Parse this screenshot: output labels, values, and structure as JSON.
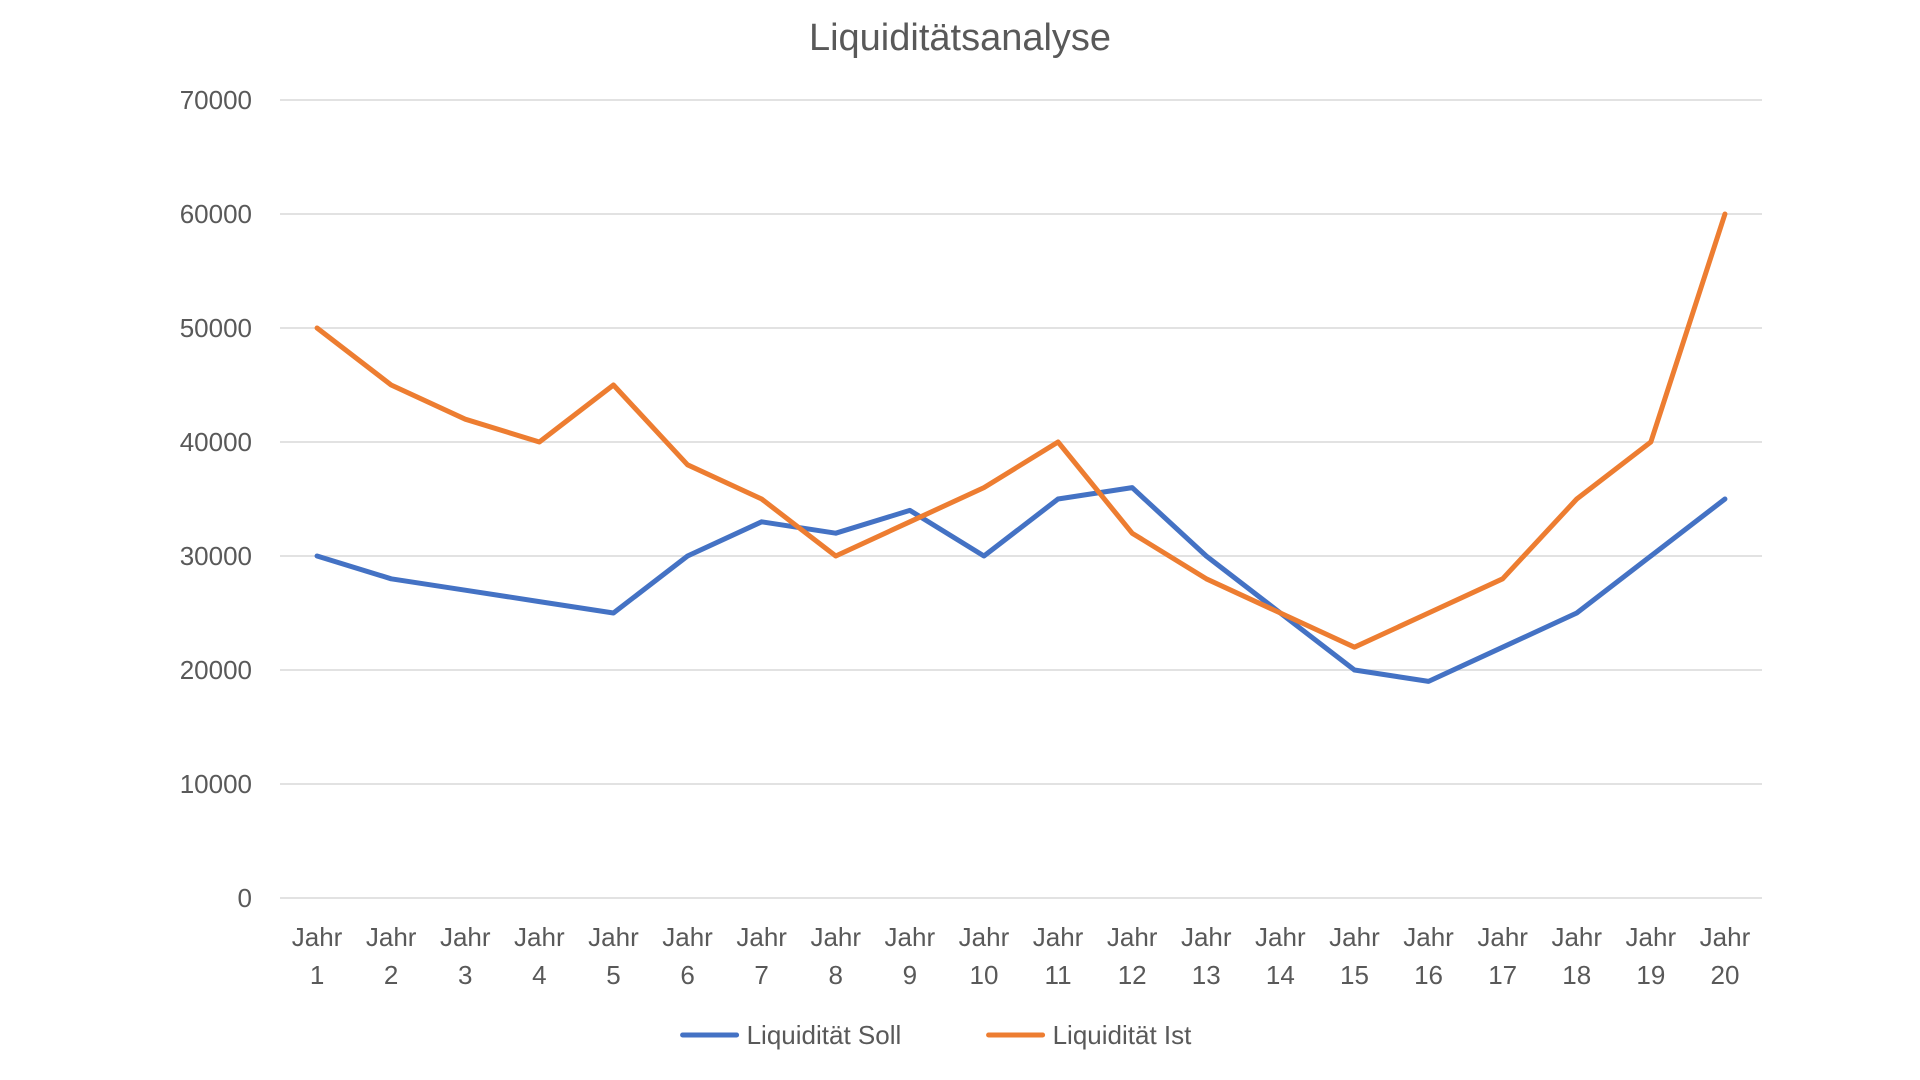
{
  "chart_data": {
    "type": "line",
    "title": "Liquiditätsanalyse",
    "xlabel": "",
    "ylabel": "",
    "ylim": [
      0,
      70000
    ],
    "y_ticks": [
      0,
      10000,
      20000,
      30000,
      40000,
      50000,
      60000,
      70000
    ],
    "grid": true,
    "legend_position": "bottom",
    "categories": [
      [
        "Jahr",
        "1"
      ],
      [
        "Jahr",
        "2"
      ],
      [
        "Jahr",
        "3"
      ],
      [
        "Jahr",
        "4"
      ],
      [
        "Jahr",
        "5"
      ],
      [
        "Jahr",
        "6"
      ],
      [
        "Jahr",
        "7"
      ],
      [
        "Jahr",
        "8"
      ],
      [
        "Jahr",
        "9"
      ],
      [
        "Jahr",
        "10"
      ],
      [
        "Jahr",
        "11"
      ],
      [
        "Jahr",
        "12"
      ],
      [
        "Jahr",
        "13"
      ],
      [
        "Jahr",
        "14"
      ],
      [
        "Jahr",
        "15"
      ],
      [
        "Jahr",
        "16"
      ],
      [
        "Jahr",
        "17"
      ],
      [
        "Jahr",
        "18"
      ],
      [
        "Jahr",
        "19"
      ],
      [
        "Jahr",
        "20"
      ]
    ],
    "series": [
      {
        "name": "Liquidität Soll",
        "color": "#4472c4",
        "values": [
          30000,
          28000,
          27000,
          26000,
          25000,
          30000,
          33000,
          32000,
          34000,
          30000,
          35000,
          36000,
          30000,
          25000,
          20000,
          19000,
          22000,
          25000,
          30000,
          35000
        ]
      },
      {
        "name": "Liquidität Ist",
        "color": "#ed7d31",
        "values": [
          50000,
          45000,
          42000,
          40000,
          45000,
          38000,
          35000,
          30000,
          33000,
          36000,
          40000,
          32000,
          28000,
          25000,
          22000,
          25000,
          28000,
          35000,
          40000,
          60000
        ]
      }
    ]
  }
}
